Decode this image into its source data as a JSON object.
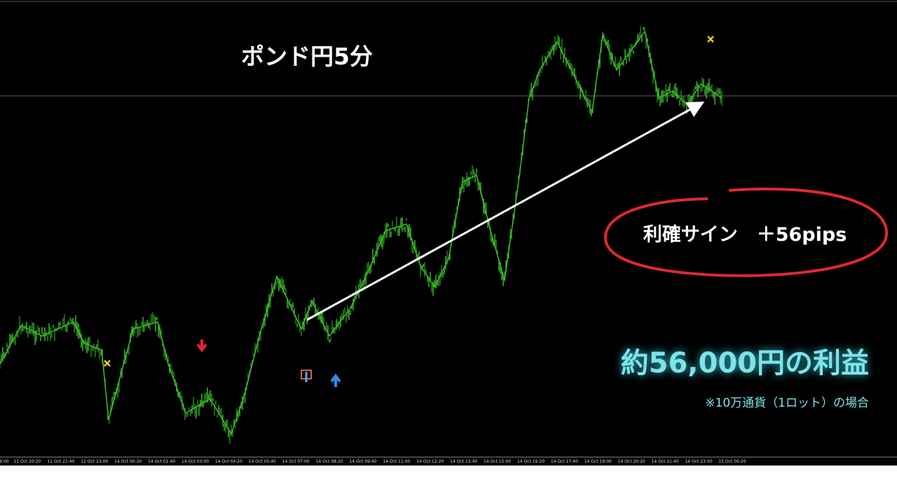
{
  "chart": {
    "title": "ポンド円5分",
    "signal_label": "利確サイン　＋56pips",
    "profit": "約56,000円の利益",
    "note": "※10万通貨（1ロット）の場合",
    "time_labels": [
      "9:00",
      "11 Oct 20:20",
      "11 Oct 21:40",
      "11 Oct 23:00",
      "14 Oct 00:20",
      "14 Oct 01:40",
      "14 Oct 03:00",
      "14 Oct 04:20",
      "14 Oct 05:40",
      "14 Oct 07:00",
      "14 Oct 08:20",
      "14 Oct 09:40",
      "14 Oct 11:00",
      "14 Oct 12:20",
      "14 Oct 13:40",
      "14 Oct 15:00",
      "14 Oct 16:20",
      "14 Oct 17:40",
      "14 Oct 19:00",
      "14 Oct 20:20",
      "14 Oct 21:40",
      "14 Oct 23:00",
      "15 Oct 00:20"
    ]
  }
}
